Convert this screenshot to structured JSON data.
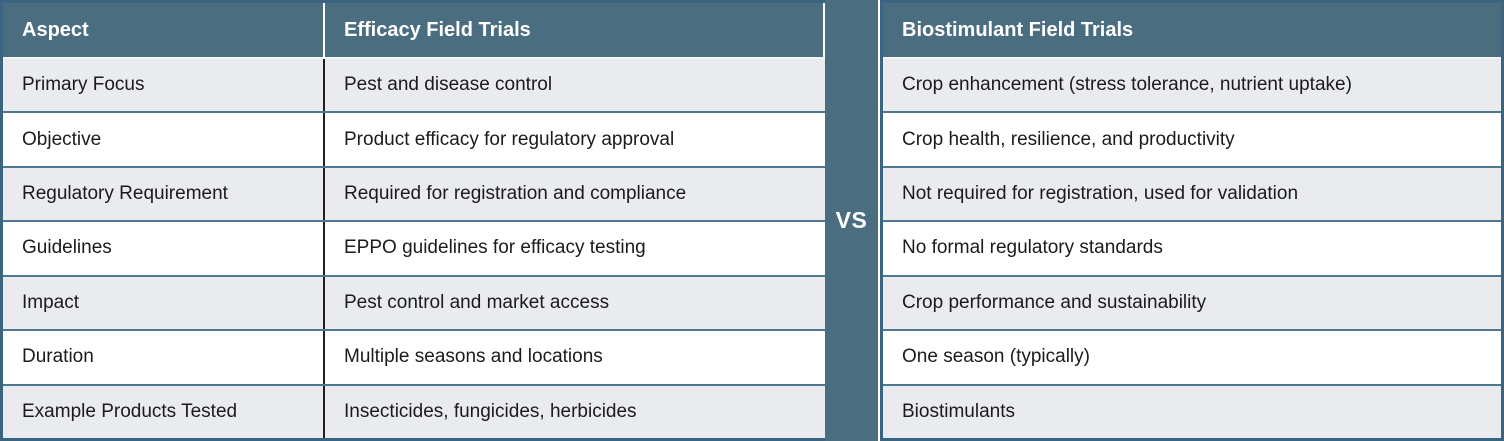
{
  "comparison": {
    "aspect_header": "Aspect",
    "left_header": "Efficacy Field Trials",
    "right_header": "Biostimulant Field Trials",
    "vs_label": "VS",
    "rows": [
      {
        "aspect": "Primary Focus",
        "efficacy": "Pest and disease control",
        "biostimulant": "Crop enhancement (stress tolerance, nutrient uptake)"
      },
      {
        "aspect": "Objective",
        "efficacy": "Product efficacy for regulatory approval",
        "biostimulant": "Crop health, resilience, and productivity"
      },
      {
        "aspect": "Regulatory Requirement",
        "efficacy": "Required for registration and compliance",
        "biostimulant": "Not required for registration, used for validation"
      },
      {
        "aspect": "Guidelines",
        "efficacy": "EPPO guidelines for efficacy testing",
        "biostimulant": "No formal regulatory standards"
      },
      {
        "aspect": "Impact",
        "efficacy": "Pest control and market access",
        "biostimulant": "Crop performance and sustainability"
      },
      {
        "aspect": "Duration",
        "efficacy": "Multiple seasons and locations",
        "biostimulant": "One season (typically)"
      },
      {
        "aspect": "Example Products Tested",
        "efficacy": "Insecticides, fungicides, herbicides",
        "biostimulant": "Biostimulants"
      }
    ]
  },
  "colors": {
    "header_fill": "#4A6D80",
    "outer_border": "#3A647F",
    "row_separator": "#4E7890",
    "alt_row_fill": "#E9EBEE",
    "row_fill": "#FFFFFF",
    "column_divider": "#1F1F1F",
    "header_text": "#FFFFFF",
    "body_text": "#1B1B1B"
  }
}
